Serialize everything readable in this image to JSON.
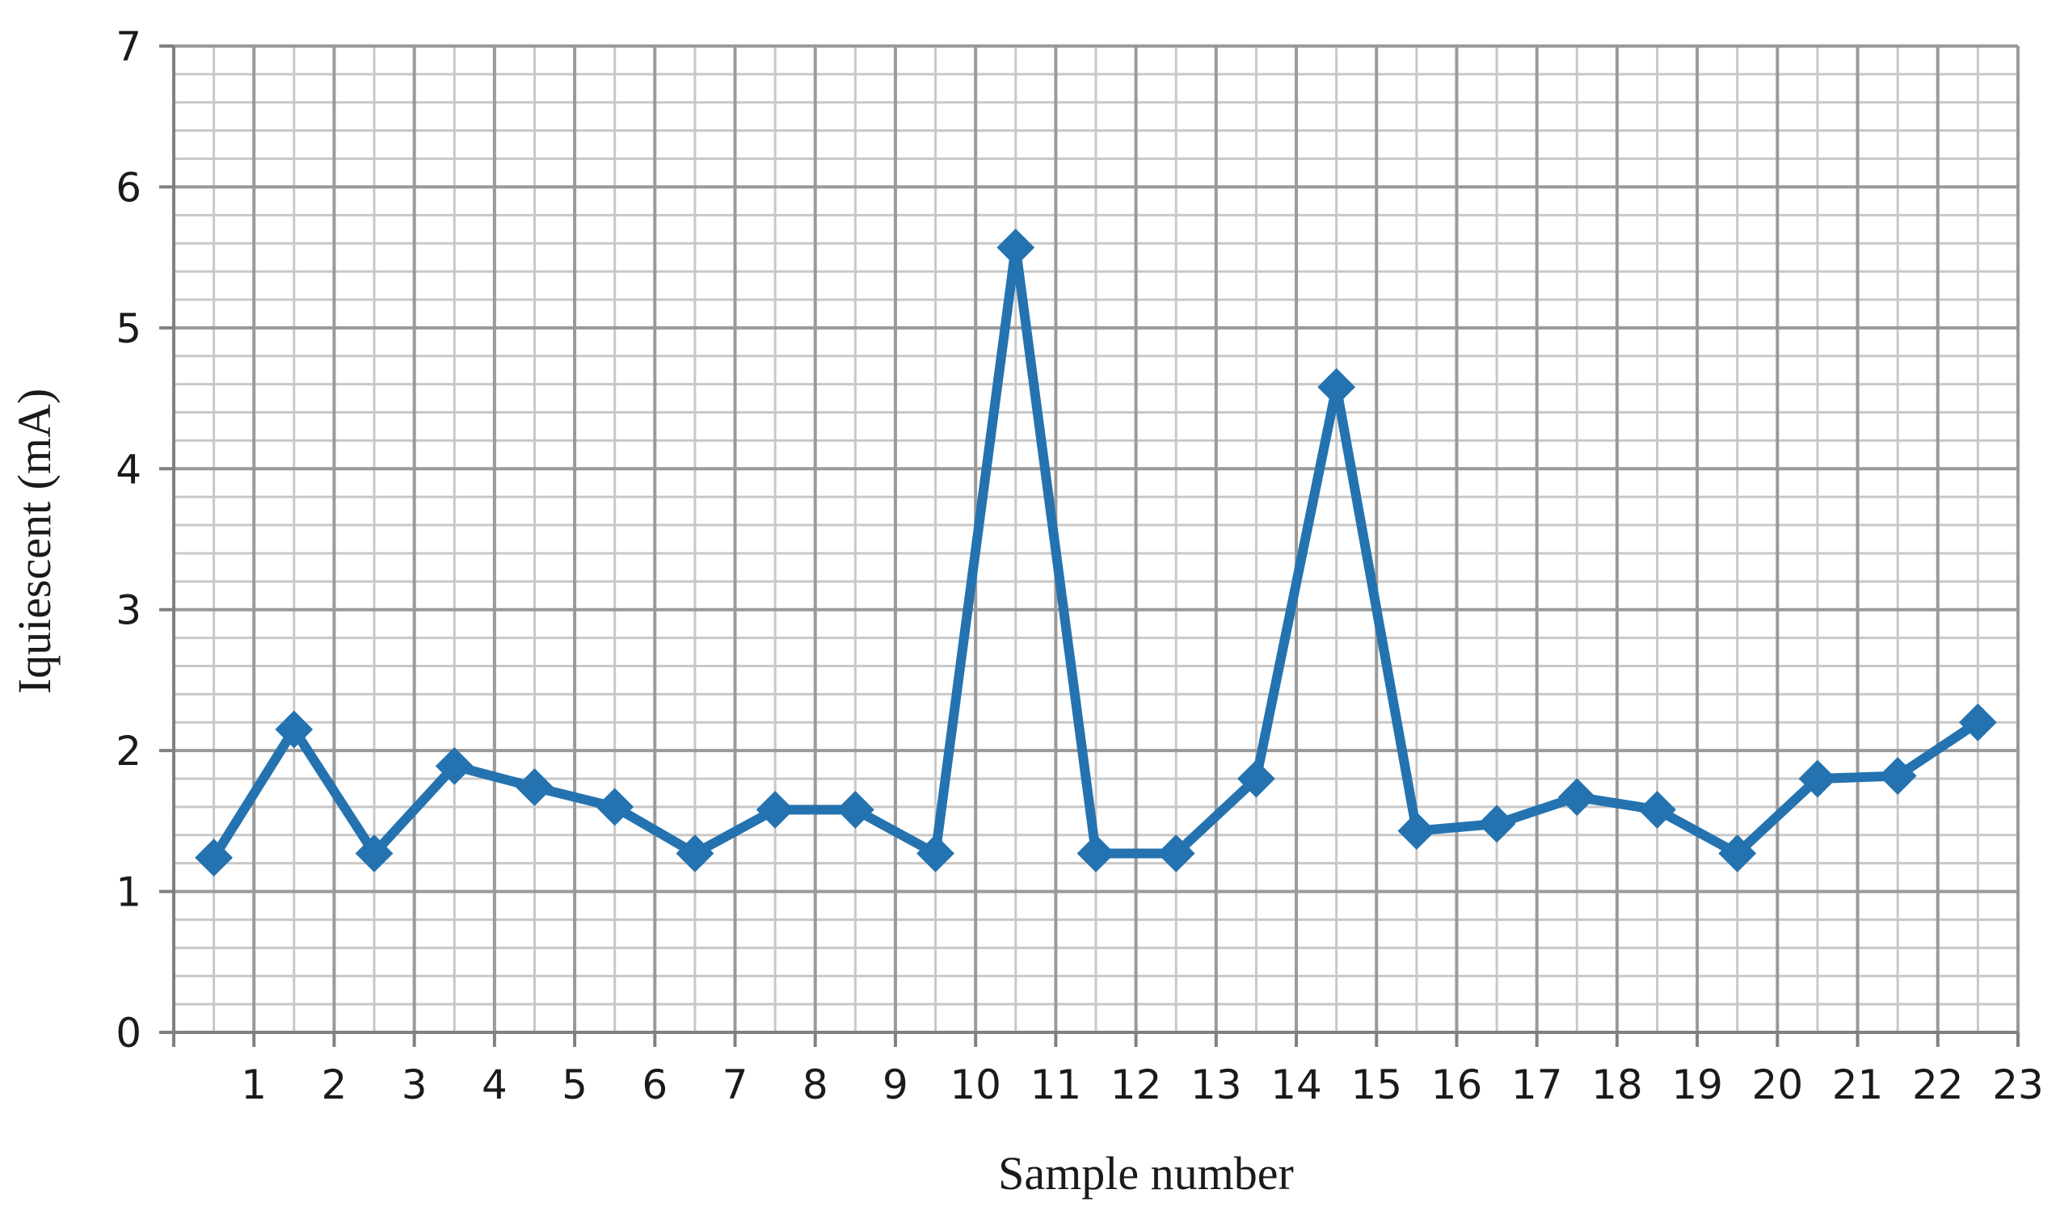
{
  "chart_data": {
    "type": "line",
    "title": "",
    "xlabel": "Sample number",
    "ylabel": "Iquiescent (mA)",
    "x_tick_labels": [
      "1",
      "2",
      "3",
      "4",
      "5",
      "6",
      "7",
      "8",
      "9",
      "10",
      "11",
      "12",
      "13",
      "14",
      "15",
      "16",
      "17",
      "18",
      "19",
      "20",
      "21",
      "22",
      "23"
    ],
    "y_tick_labels": [
      "0",
      "1",
      "2",
      "3",
      "4",
      "5",
      "6",
      "7"
    ],
    "xlim": [
      0,
      23
    ],
    "ylim": [
      0,
      7
    ],
    "grid": true,
    "minor_grid": true,
    "legend": "none",
    "marker": "diamond",
    "color": "#2473B0",
    "series": [
      {
        "x": [
          0.5,
          1.5,
          2.5,
          3.5,
          4.5,
          5.5,
          6.5,
          7.5,
          8.5,
          9.5,
          10.5,
          11.5,
          12.5,
          13.5,
          14.5,
          15.5,
          16.5,
          17.5,
          18.5,
          19.5,
          20.5,
          21.5,
          22.5
        ],
        "values": [
          1.24,
          2.15,
          1.27,
          1.89,
          1.74,
          1.6,
          1.27,
          1.58,
          1.58,
          1.27,
          5.57,
          1.27,
          1.27,
          1.8,
          4.58,
          1.43,
          1.48,
          1.67,
          1.58,
          1.27,
          1.8,
          1.82,
          2.2
        ]
      }
    ]
  }
}
